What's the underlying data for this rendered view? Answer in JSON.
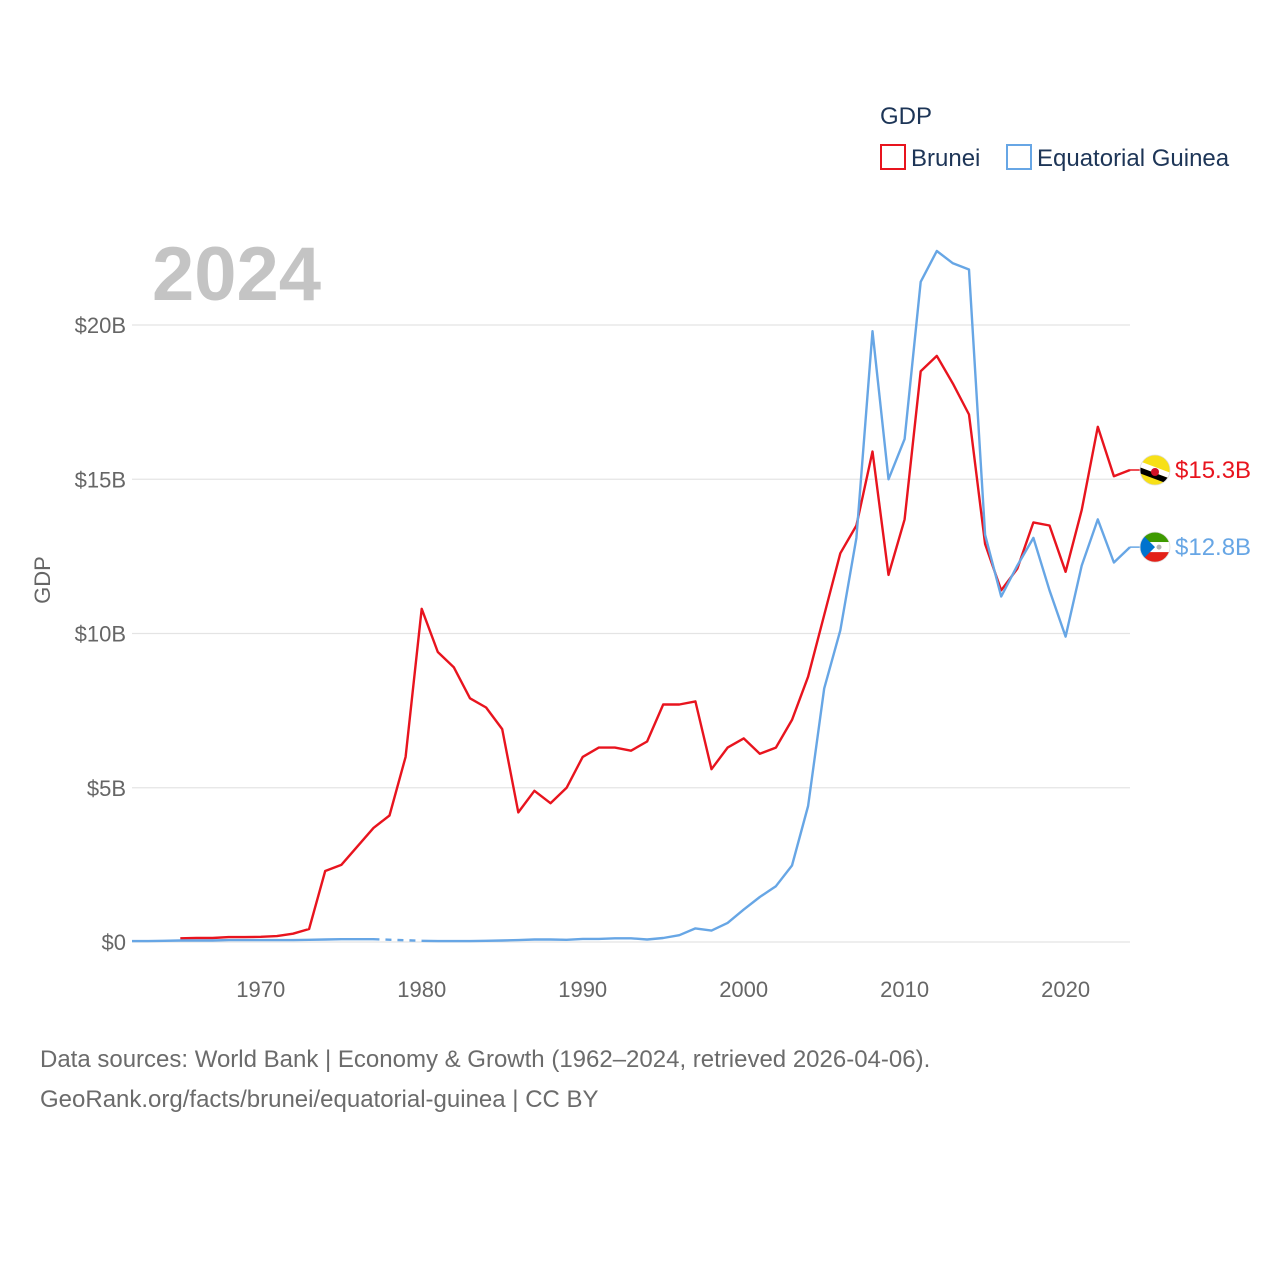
{
  "chart_data": {
    "type": "line",
    "title": "GDP",
    "ylabel": "GDP",
    "xlabel": "",
    "current_year_label": "2024",
    "xlim": [
      1962,
      2024
    ],
    "ylim": [
      0,
      22500000000
    ],
    "x_ticks": [
      1970,
      1980,
      1990,
      2000,
      2010,
      2020
    ],
    "y_ticks": [
      {
        "value": 0,
        "label": "$0"
      },
      {
        "value": 5000000000,
        "label": "$5B"
      },
      {
        "value": 10000000000,
        "label": "$10B"
      },
      {
        "value": 15000000000,
        "label": "$15B"
      },
      {
        "value": 20000000000,
        "label": "$20B"
      }
    ],
    "grid": true,
    "legend": {
      "title": "GDP",
      "position": "top-right"
    },
    "series": [
      {
        "name": "Brunei",
        "color": "#e8141e",
        "end_label": "$15.3B",
        "flag": "brunei-flag-icon",
        "points": [
          [
            1965,
            0.12
          ],
          [
            1966,
            0.13
          ],
          [
            1967,
            0.13
          ],
          [
            1968,
            0.16
          ],
          [
            1969,
            0.16
          ],
          [
            1970,
            0.17
          ],
          [
            1971,
            0.19
          ],
          [
            1972,
            0.27
          ],
          [
            1973,
            0.42
          ],
          [
            1974,
            2.3
          ],
          [
            1975,
            2.5
          ],
          [
            1976,
            3.1
          ],
          [
            1977,
            3.7
          ],
          [
            1978,
            4.1
          ],
          [
            1979,
            6.0
          ],
          [
            1980,
            10.8
          ],
          [
            1981,
            9.4
          ],
          [
            1982,
            8.9
          ],
          [
            1983,
            7.9
          ],
          [
            1984,
            7.6
          ],
          [
            1985,
            6.9
          ],
          [
            1986,
            4.2
          ],
          [
            1987,
            4.9
          ],
          [
            1988,
            4.5
          ],
          [
            1989,
            5.0
          ],
          [
            1990,
            6.0
          ],
          [
            1991,
            6.3
          ],
          [
            1992,
            6.3
          ],
          [
            1993,
            6.2
          ],
          [
            1994,
            6.5
          ],
          [
            1995,
            7.7
          ],
          [
            1996,
            7.7
          ],
          [
            1997,
            7.8
          ],
          [
            1998,
            5.6
          ],
          [
            1999,
            6.3
          ],
          [
            2000,
            6.6
          ],
          [
            2001,
            6.1
          ],
          [
            2002,
            6.3
          ],
          [
            2003,
            7.2
          ],
          [
            2004,
            8.6
          ],
          [
            2005,
            10.6
          ],
          [
            2006,
            12.6
          ],
          [
            2007,
            13.5
          ],
          [
            2008,
            15.9
          ],
          [
            2009,
            11.9
          ],
          [
            2010,
            13.7
          ],
          [
            2011,
            18.5
          ],
          [
            2012,
            19.0
          ],
          [
            2013,
            18.1
          ],
          [
            2014,
            17.1
          ],
          [
            2015,
            12.9
          ],
          [
            2016,
            11.4
          ],
          [
            2017,
            12.1
          ],
          [
            2018,
            13.6
          ],
          [
            2019,
            13.5
          ],
          [
            2020,
            12.0
          ],
          [
            2021,
            14.0
          ],
          [
            2022,
            16.7
          ],
          [
            2023,
            15.1
          ],
          [
            2024,
            15.3
          ]
        ]
      },
      {
        "name": "Equatorial Guinea",
        "color": "#67a6e5",
        "end_label": "$12.8B",
        "flag": "equatorial-guinea-flag-icon",
        "gap_years": [
          1978,
          1979
        ],
        "points": [
          [
            1962,
            0.03
          ],
          [
            1963,
            0.03
          ],
          [
            1964,
            0.04
          ],
          [
            1965,
            0.05
          ],
          [
            1966,
            0.05
          ],
          [
            1967,
            0.05
          ],
          [
            1968,
            0.06
          ],
          [
            1969,
            0.06
          ],
          [
            1970,
            0.06
          ],
          [
            1971,
            0.06
          ],
          [
            1972,
            0.06
          ],
          [
            1973,
            0.07
          ],
          [
            1974,
            0.08
          ],
          [
            1975,
            0.09
          ],
          [
            1976,
            0.09
          ],
          [
            1977,
            0.09
          ],
          [
            1980,
            0.04
          ],
          [
            1981,
            0.03
          ],
          [
            1982,
            0.03
          ],
          [
            1983,
            0.03
          ],
          [
            1984,
            0.04
          ],
          [
            1985,
            0.05
          ],
          [
            1986,
            0.06
          ],
          [
            1987,
            0.08
          ],
          [
            1988,
            0.08
          ],
          [
            1989,
            0.07
          ],
          [
            1990,
            0.1
          ],
          [
            1991,
            0.1
          ],
          [
            1992,
            0.12
          ],
          [
            1993,
            0.12
          ],
          [
            1994,
            0.08
          ],
          [
            1995,
            0.13
          ],
          [
            1996,
            0.22
          ],
          [
            1997,
            0.44
          ],
          [
            1998,
            0.37
          ],
          [
            1999,
            0.62
          ],
          [
            2000,
            1.05
          ],
          [
            2001,
            1.46
          ],
          [
            2002,
            1.81
          ],
          [
            2003,
            2.48
          ],
          [
            2004,
            4.41
          ],
          [
            2005,
            8.22
          ],
          [
            2006,
            10.1
          ],
          [
            2007,
            13.1
          ],
          [
            2008,
            19.8
          ],
          [
            2009,
            15.0
          ],
          [
            2010,
            16.3
          ],
          [
            2011,
            21.4
          ],
          [
            2012,
            22.4
          ],
          [
            2013,
            22.0
          ],
          [
            2014,
            21.8
          ],
          [
            2015,
            13.2
          ],
          [
            2016,
            11.2
          ],
          [
            2017,
            12.2
          ],
          [
            2018,
            13.1
          ],
          [
            2019,
            11.4
          ],
          [
            2020,
            9.9
          ],
          [
            2021,
            12.2
          ],
          [
            2022,
            13.7
          ],
          [
            2023,
            12.3
          ],
          [
            2024,
            12.8
          ]
        ]
      }
    ]
  },
  "source": {
    "line1": "Data sources: World Bank | Economy & Growth (1962–2024, retrieved 2026-04-06).",
    "line2": "GeoRank.org/facts/brunei/equatorial-guinea | CC BY"
  }
}
